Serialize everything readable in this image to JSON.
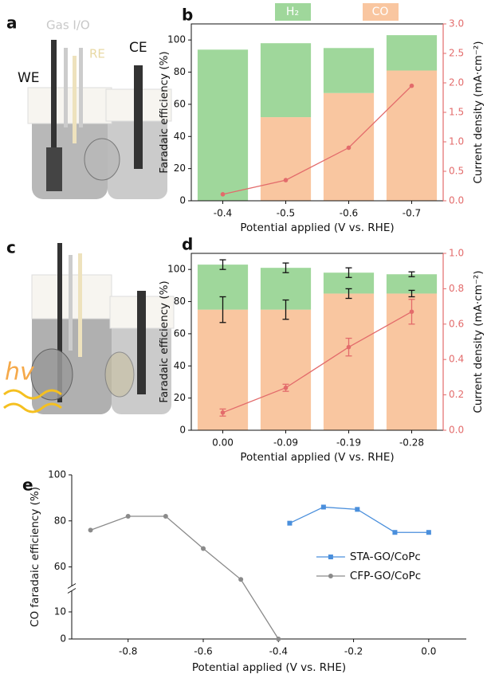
{
  "illustrations": [
    {
      "label": "a",
      "texts": [
        "Gas I/O",
        "RE",
        "WE",
        "CE"
      ]
    },
    {
      "label": "c",
      "texts": [
        "hv"
      ]
    }
  ],
  "chart_data": [
    {
      "type": "bar",
      "panel_label": "b",
      "categories": [
        "-0.4",
        "-0.5",
        "-0.6",
        "-0.7"
      ],
      "series": [
        {
          "name": "H₂",
          "color": "#9fd79b",
          "values": [
            94,
            46,
            28,
            22
          ]
        },
        {
          "name": "CO",
          "color": "#f9c6a0",
          "values": [
            0,
            52,
            67,
            81
          ]
        },
        {
          "color": "#e36b6b",
          "axis": "y2",
          "values": [
            0.11,
            0.35,
            0.9,
            1.95
          ]
        }
      ],
      "legend": "top",
      "xlabel": "Potential applied (V vs. RHE)",
      "ylabel": "Faradaic efficiency (%)",
      "y2label": "Current density (mA·cm⁻²)",
      "ylim": [
        0,
        110
      ],
      "yticks": [
        0,
        20,
        40,
        60,
        80,
        100
      ],
      "y2lim": [
        0,
        3
      ],
      "y2ticks": [
        {
          "value": 0,
          "label": "0.0"
        },
        0.5,
        {
          "value": 1,
          "label": "1.0"
        },
        1.5,
        {
          "value": 2,
          "label": "2.0"
        },
        2.5,
        {
          "value": 3,
          "label": "3.0"
        }
      ]
    },
    {
      "type": "bar",
      "panel_label": "d",
      "categories": [
        "0.00",
        "-0.09",
        "-0.19",
        "-0.28"
      ],
      "series": [
        {
          "color": "#9fd79b",
          "values": [
            28,
            26,
            13,
            12
          ],
          "errors": [
            3,
            3,
            3,
            1.5
          ]
        },
        {
          "color": "#f9c6a0",
          "values": [
            75,
            75,
            85,
            85
          ],
          "errors": [
            8,
            6,
            3,
            2
          ]
        },
        {
          "color": "#e36b6b",
          "axis": "y2",
          "values": [
            0.1,
            0.24,
            0.47,
            0.67
          ],
          "errors": [
            0.02,
            0.02,
            0.05,
            0.07
          ]
        }
      ],
      "xlabel": "Potential applied (V vs. RHE)",
      "ylabel": "Faradaic efficiency (%)",
      "y2label": "Current density (mA·cm⁻²)",
      "ylim": [
        0,
        110
      ],
      "yticks": [
        0,
        20,
        40,
        60,
        80,
        100
      ],
      "y2lim": [
        0,
        1
      ],
      "y2ticks": [
        {
          "value": 0,
          "label": "0.0"
        },
        0.2,
        0.4,
        0.6,
        0.8,
        {
          "value": 1,
          "label": "1.0"
        }
      ]
    },
    {
      "type": "line",
      "panel_label": "e",
      "xlabel": "Potential applied (V vs. RHE)",
      "ylabel": "CO faradaic efficiency (%)",
      "xlim": [
        -0.95,
        0.1
      ],
      "xticks": [
        -0.8,
        -0.6,
        -0.4,
        -0.2,
        {
          "value": 0,
          "label": "0.0"
        }
      ],
      "ylim": [
        0,
        100
      ],
      "ybreak": [
        15,
        55
      ],
      "yticks": [
        0,
        10,
        60,
        80,
        100
      ],
      "legend": "right",
      "series": [
        {
          "name": "STA-GO/CoPc",
          "color": "#4a8fdc",
          "marker": "square",
          "x": [
            -0.37,
            -0.28,
            -0.19,
            -0.09,
            0
          ],
          "values": [
            79,
            86,
            85,
            75,
            75
          ]
        },
        {
          "name": "CFP-GO/CoPc",
          "color": "#8a8a8a",
          "marker": "circle",
          "x": [
            -0.9,
            -0.8,
            -0.7,
            -0.6,
            -0.5,
            -0.4
          ],
          "values": [
            76,
            82,
            82,
            68,
            53,
            0
          ]
        }
      ]
    }
  ]
}
